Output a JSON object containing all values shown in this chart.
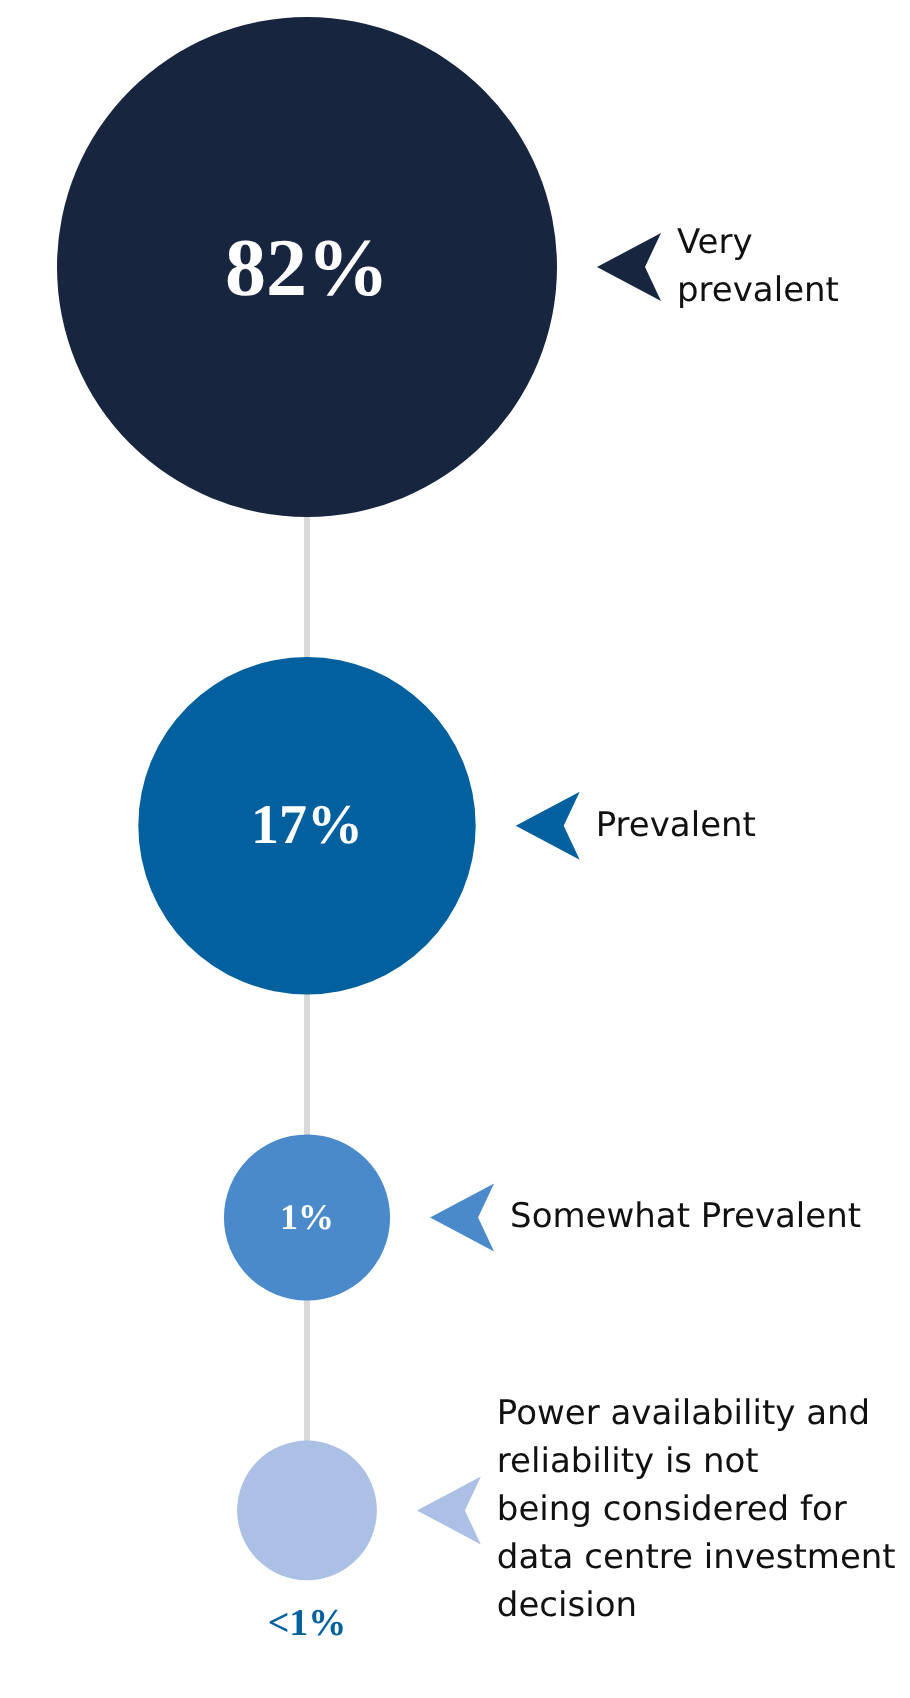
{
  "chart_data": {
    "type": "other",
    "categories": [
      "Very prevalent",
      "Prevalent",
      "Somewhat Prevalent",
      "Power availability and reliability is not being considered for data centre investment decision"
    ],
    "values": [
      82,
      17,
      1,
      0.5
    ],
    "value_labels": [
      "82%",
      "17%",
      "1%",
      "<1%"
    ],
    "colors": [
      "#18253f",
      "#02609e",
      "#4a8acb",
      "#abc0e4"
    ]
  }
}
